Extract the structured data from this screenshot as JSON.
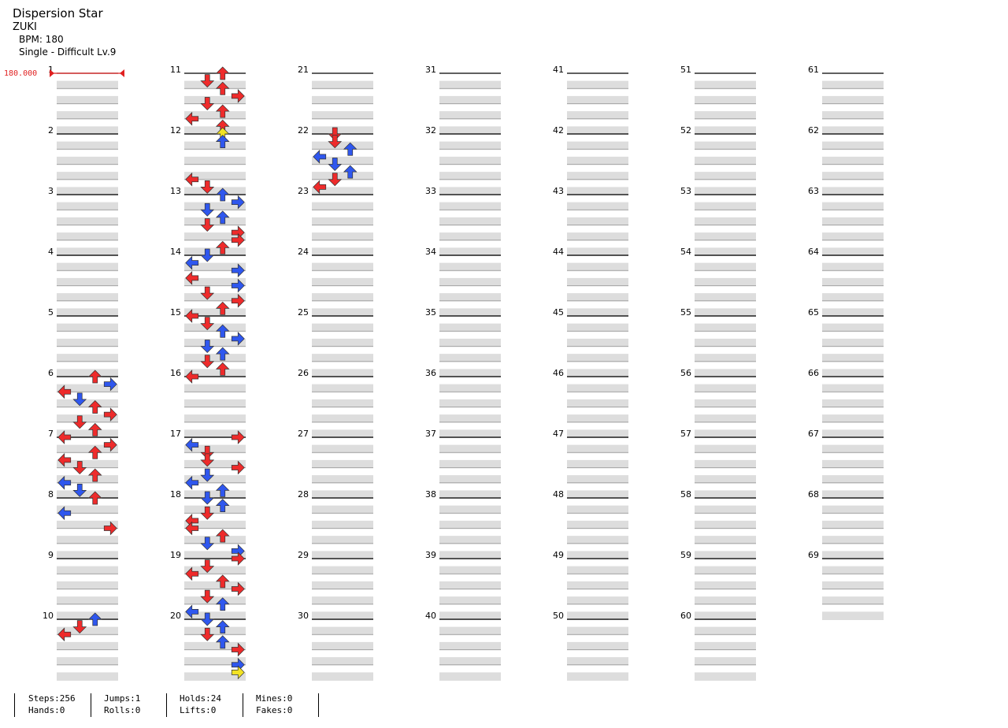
{
  "song": {
    "title": "Dispersion Star",
    "artist": "ZUKI",
    "bpm_label": "BPM: 180",
    "difficulty_label": "Single - Difficult Lv.9"
  },
  "bpm_marker": "180.000",
  "colors": {
    "red": "#ee2b2b",
    "blue": "#2f57ee",
    "yellow": "#f2e224",
    "hold": "#8fdc8f",
    "row_gray": "#dddddd"
  },
  "stats": {
    "steps": "Steps:256",
    "jumps": "Jumps:1",
    "holds": "Holds:24",
    "mines": "Mines:0",
    "hands": "Hands:0",
    "rolls": "Rolls:0",
    "lifts": "Lifts:0",
    "fakes": "Fakes:0"
  },
  "chart_data": {
    "type": "step-chart",
    "measures": 69,
    "lanes": [
      "left",
      "down",
      "up",
      "right"
    ],
    "note_colors": {
      "R": "red (quarter)",
      "B": "blue (eighth)",
      "Y": "yellow (sixteenth)"
    },
    "notes": [
      [
        6,
        0,
        "up",
        "R"
      ],
      [
        6,
        0.5,
        "right",
        "B"
      ],
      [
        6,
        1,
        "left",
        "R"
      ],
      [
        6,
        1.5,
        "down",
        "B"
      ],
      [
        6,
        2,
        "up",
        "R"
      ],
      [
        6,
        2.5,
        "right",
        "R"
      ],
      [
        6,
        3,
        "down",
        "R"
      ],
      [
        6,
        3.5,
        "up",
        "R"
      ],
      [
        7,
        0,
        "left",
        "R"
      ],
      [
        7,
        0.5,
        "right",
        "R"
      ],
      [
        7,
        1,
        "up",
        "R"
      ],
      [
        7,
        1.5,
        "left",
        "R"
      ],
      [
        7,
        2,
        "down",
        "R"
      ],
      [
        7,
        2.5,
        "up",
        "R"
      ],
      [
        7,
        3,
        "left",
        "B"
      ],
      [
        7,
        3.5,
        "down",
        "B"
      ],
      [
        8,
        0,
        "up",
        "R"
      ],
      [
        8,
        1,
        "left",
        "B"
      ],
      [
        8,
        2,
        "right",
        "R"
      ],
      [
        10,
        0,
        "up",
        "B"
      ],
      [
        10,
        0.5,
        "down",
        "R"
      ],
      [
        10,
        1,
        "left",
        "R"
      ],
      [
        11,
        0,
        "up",
        "R"
      ],
      [
        11,
        0.5,
        "down",
        "R"
      ],
      [
        11,
        1,
        "up",
        "R"
      ],
      [
        11,
        1.5,
        "right",
        "R"
      ],
      [
        11,
        2,
        "down",
        "R"
      ],
      [
        11,
        2.5,
        "up",
        "R"
      ],
      [
        11,
        3,
        "left",
        "R"
      ],
      [
        11,
        3.5,
        "up",
        "R"
      ],
      [
        12,
        0,
        "up",
        "Y"
      ],
      [
        12,
        0.5,
        "up",
        "B"
      ],
      [
        12,
        3,
        "left",
        "R"
      ],
      [
        12,
        3.5,
        "down",
        "R"
      ],
      [
        13,
        0,
        "up",
        "B"
      ],
      [
        13,
        0.5,
        "right",
        "B"
      ],
      [
        13,
        1,
        "down",
        "B"
      ],
      [
        13,
        1.5,
        "up",
        "B"
      ],
      [
        13,
        2,
        "down",
        "R"
      ],
      [
        13,
        2.5,
        "right",
        "R"
      ],
      [
        13,
        3,
        "right",
        "R"
      ],
      [
        13,
        3.5,
        "up",
        "R"
      ],
      [
        14,
        0,
        "down",
        "B"
      ],
      [
        14,
        0.5,
        "left",
        "B"
      ],
      [
        14,
        1,
        "right",
        "B"
      ],
      [
        14,
        1.5,
        "left",
        "R"
      ],
      [
        14,
        2,
        "right",
        "B"
      ],
      [
        14,
        2.5,
        "down",
        "R"
      ],
      [
        14,
        3,
        "right",
        "R"
      ],
      [
        14,
        3.5,
        "up",
        "R"
      ],
      [
        15,
        0,
        "left",
        "R"
      ],
      [
        15,
        0.5,
        "down",
        "R"
      ],
      [
        15,
        1,
        "up",
        "B"
      ],
      [
        15,
        1.5,
        "right",
        "B"
      ],
      [
        15,
        2,
        "down",
        "B"
      ],
      [
        15,
        2.5,
        "up",
        "B"
      ],
      [
        15,
        3,
        "down",
        "R"
      ],
      [
        15,
        3.5,
        "up",
        "R"
      ],
      [
        16,
        0,
        "left",
        "R"
      ],
      [
        17,
        0,
        "right",
        "R"
      ],
      [
        17,
        0.5,
        "left",
        "B"
      ],
      [
        17,
        1,
        "down",
        "R"
      ],
      [
        17,
        1.5,
        "down",
        "R"
      ],
      [
        17,
        2,
        "right",
        "R"
      ],
      [
        17,
        2.5,
        "down",
        "B"
      ],
      [
        17,
        3,
        "left",
        "B"
      ],
      [
        17,
        3.5,
        "up",
        "B"
      ],
      [
        18,
        0,
        "down",
        "B"
      ],
      [
        18,
        0.5,
        "up",
        "B"
      ],
      [
        18,
        1,
        "down",
        "R"
      ],
      [
        18,
        1.5,
        "left",
        "R"
      ],
      [
        18,
        2,
        "left",
        "R"
      ],
      [
        18,
        2.5,
        "up",
        "R"
      ],
      [
        18,
        3,
        "down",
        "B"
      ],
      [
        18,
        3.5,
        "right",
        "B"
      ],
      [
        19,
        0,
        "right",
        "R"
      ],
      [
        19,
        0.5,
        "down",
        "R"
      ],
      [
        19,
        1,
        "left",
        "R"
      ],
      [
        19,
        1.5,
        "up",
        "R"
      ],
      [
        19,
        2,
        "right",
        "R"
      ],
      [
        19,
        2.5,
        "down",
        "R"
      ],
      [
        19,
        3,
        "up",
        "B"
      ],
      [
        19,
        3.5,
        "left",
        "B"
      ],
      [
        20,
        0,
        "down",
        "B"
      ],
      [
        20,
        0.5,
        "up",
        "B"
      ],
      [
        20,
        1,
        "down",
        "R"
      ],
      [
        20,
        1.5,
        "up",
        "B"
      ],
      [
        20,
        2,
        "right",
        "R"
      ],
      [
        20,
        3,
        "right",
        "B"
      ],
      [
        20,
        3.5,
        "right",
        "Y"
      ],
      [
        22,
        0,
        "down",
        "R"
      ],
      [
        22,
        0.5,
        "down",
        "R"
      ],
      [
        22,
        1,
        "up",
        "B"
      ],
      [
        22,
        1.5,
        "left",
        "B"
      ],
      [
        22,
        2,
        "down",
        "B"
      ],
      [
        22,
        2.5,
        "up",
        "B"
      ],
      [
        22,
        3,
        "down",
        "R"
      ],
      [
        22,
        3.5,
        "left",
        "R"
      ]
    ]
  }
}
